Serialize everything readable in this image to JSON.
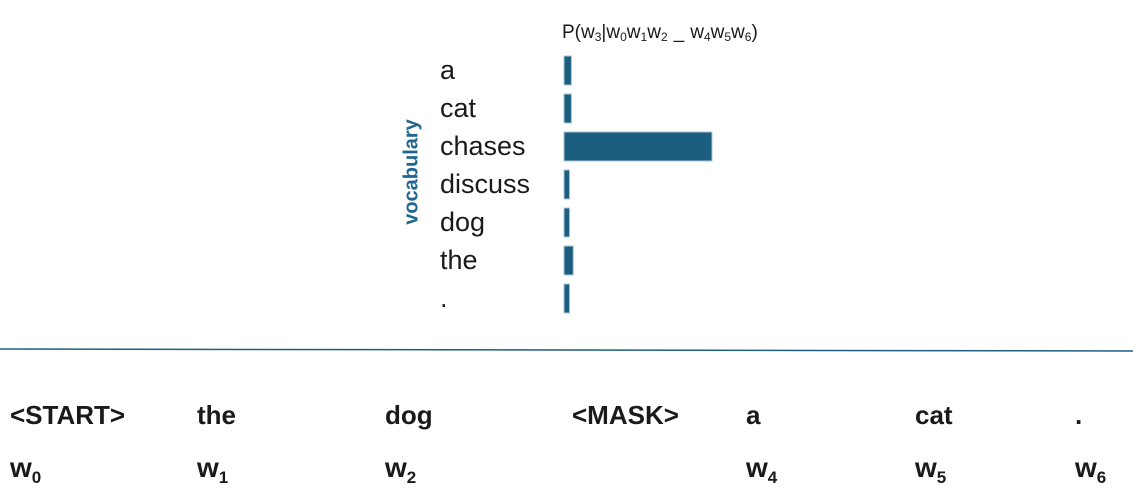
{
  "chart_data": {
    "type": "bar",
    "title_parts": [
      "P(w",
      "3",
      "|w",
      "0",
      "w",
      "1",
      "w",
      "2",
      "_",
      "w",
      "4",
      "w",
      "5",
      "w",
      "6",
      ")"
    ],
    "ylabel": "vocabulary",
    "categories": [
      "a",
      "cat",
      "chases",
      "discuss",
      "dog",
      "the",
      "."
    ],
    "values": [
      0.02,
      0.02,
      0.4,
      0.015,
      0.015,
      0.025,
      0.015
    ],
    "bar_color": "#1b5e80"
  },
  "sequence": [
    {
      "word": "<START>",
      "pos": "w",
      "index": "0"
    },
    {
      "word": "the",
      "pos": "w",
      "index": "1"
    },
    {
      "word": "dog",
      "pos": "w",
      "index": "2"
    },
    {
      "word": "<MASK>",
      "pos": "",
      "index": ""
    },
    {
      "word": "a",
      "pos": "w",
      "index": "4"
    },
    {
      "word": "cat",
      "pos": "w",
      "index": "5"
    },
    {
      "word": ".",
      "pos": "w",
      "index": "6"
    }
  ],
  "colors": {
    "accent": "#1f6791",
    "divider": "#1b5e80"
  }
}
